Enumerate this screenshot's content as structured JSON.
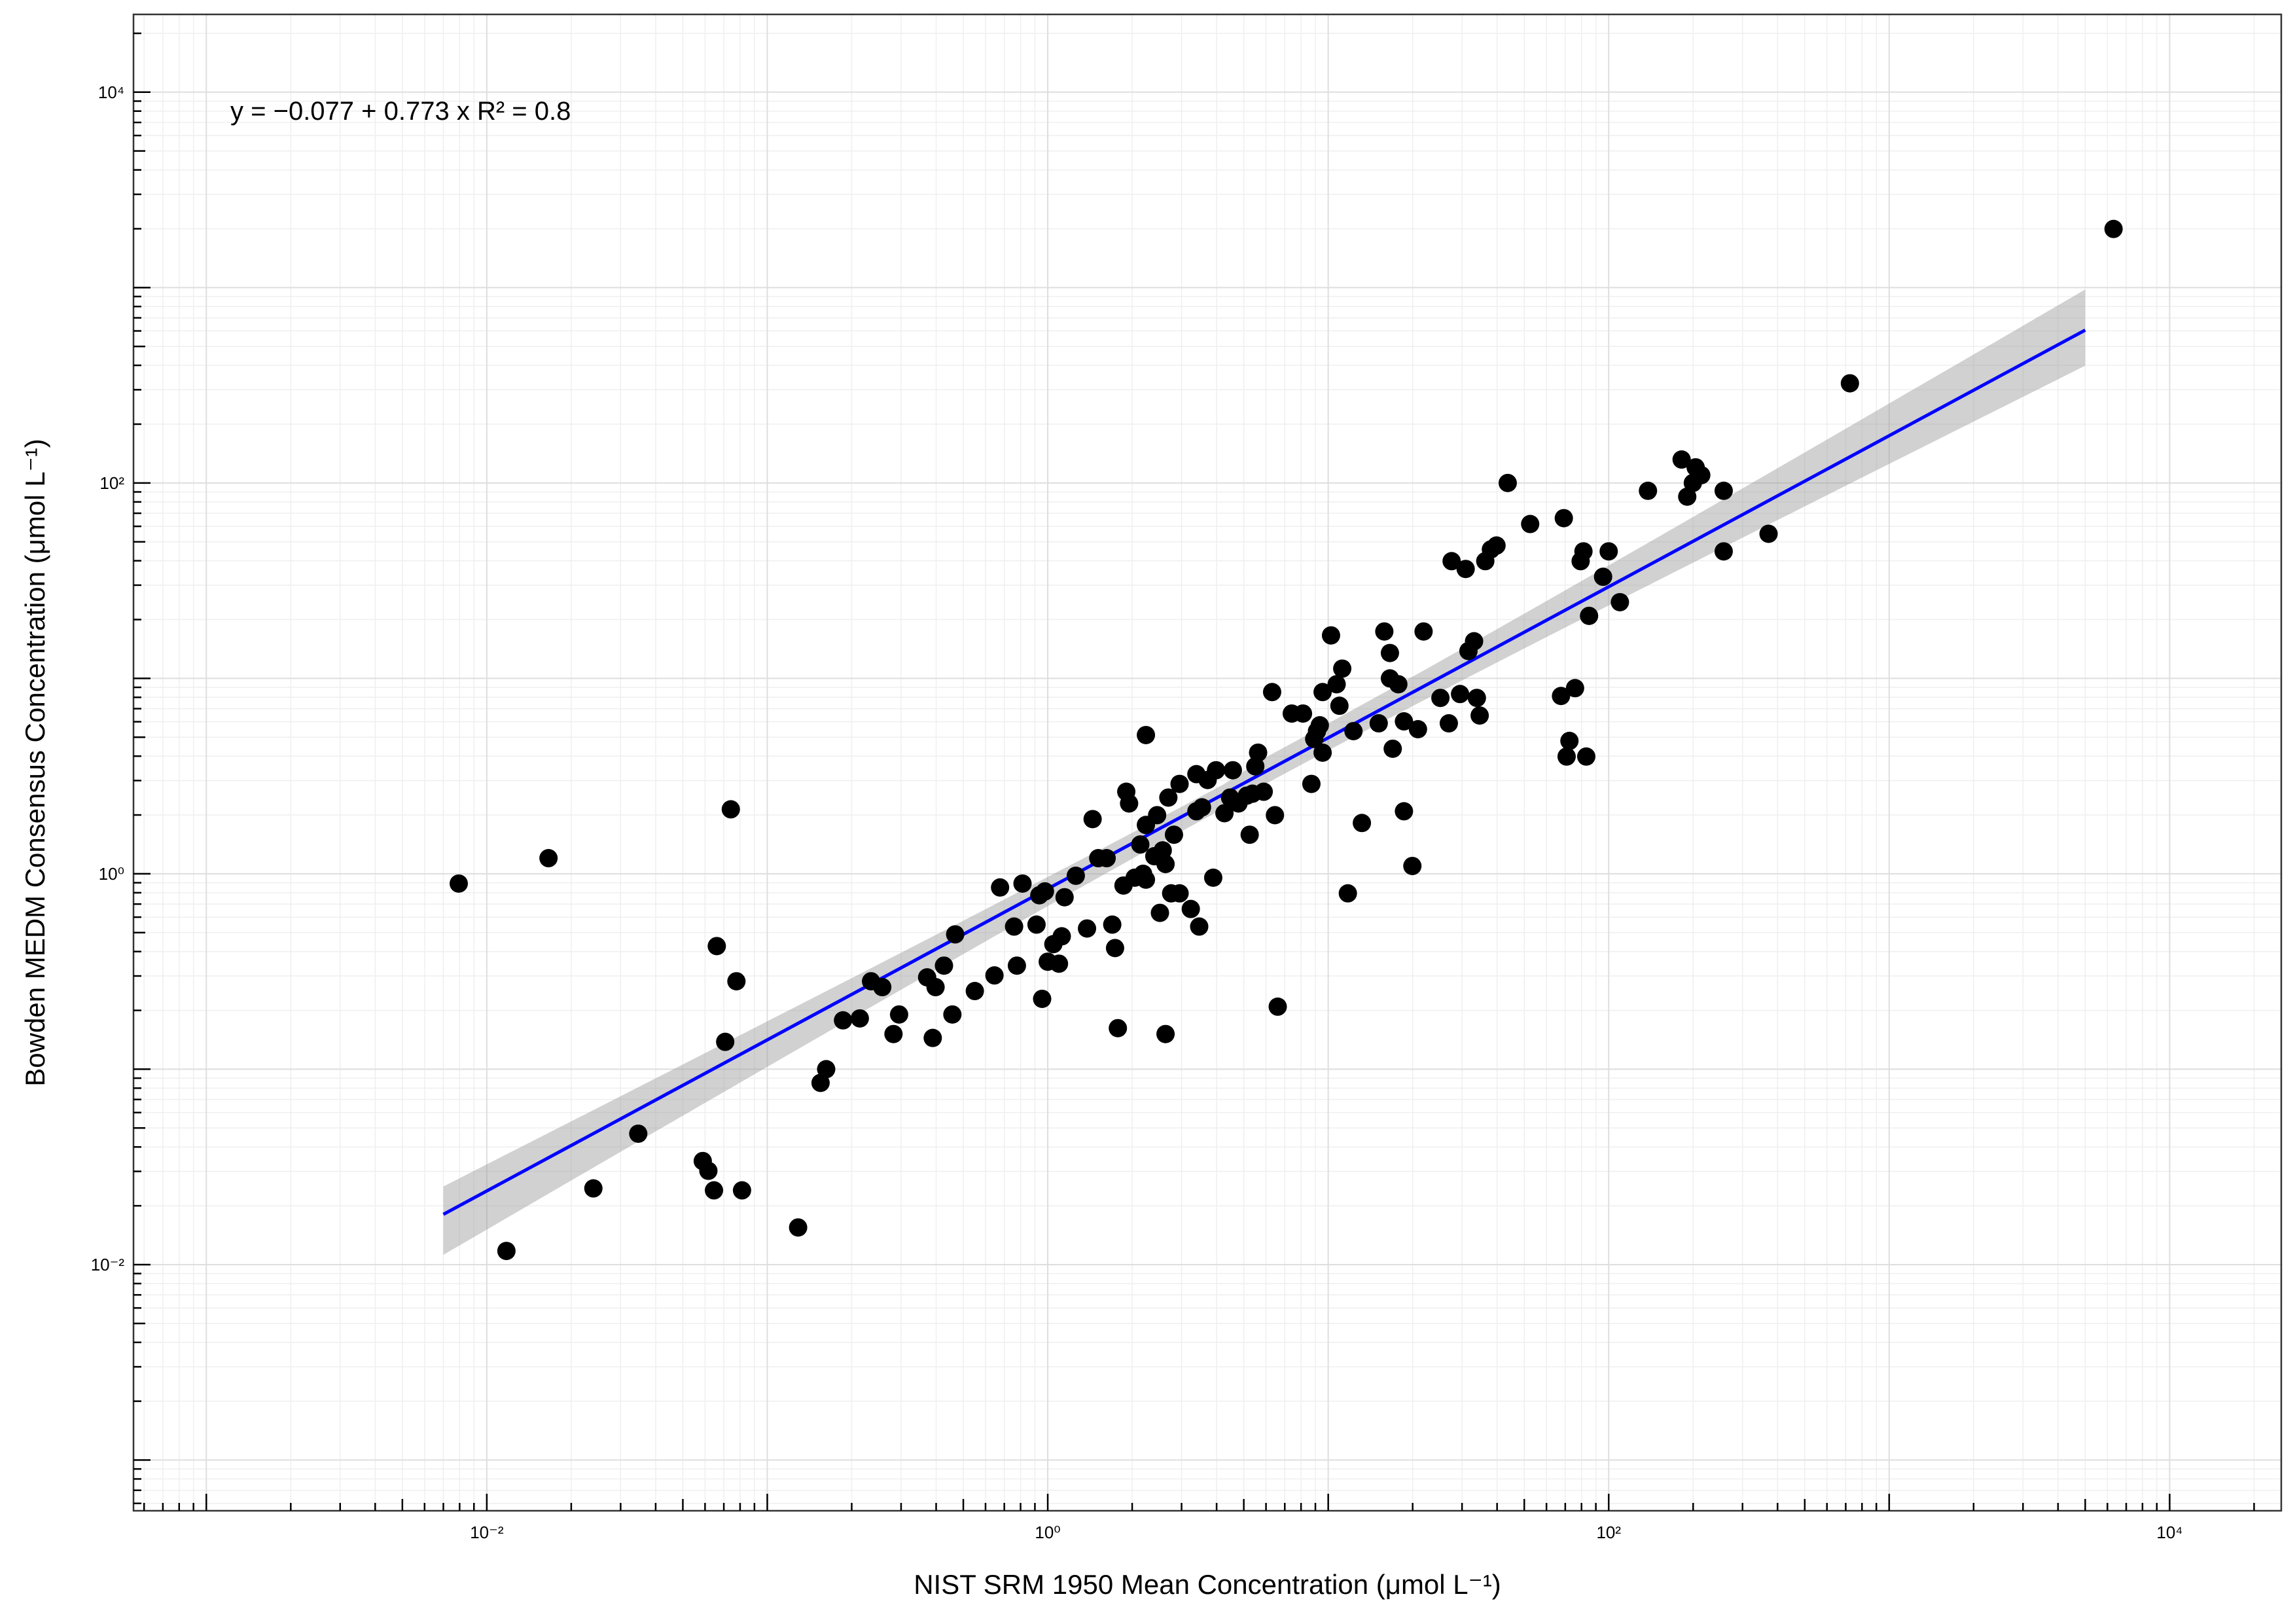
{
  "chart_data": {
    "type": "scatter",
    "x_scale": "log10",
    "y_scale": "log10",
    "xlabel": "NIST SRM 1950 Mean Concentration (μmol L⁻¹)",
    "ylabel": "Bowden MEDM Consensus Concentration (μmol L⁻¹)",
    "xlim": [
      0.00055,
      25000
    ],
    "ylim": [
      0.00055,
      25000
    ],
    "x_ticks": [
      {
        "value": 0.01,
        "label": "10⁻²"
      },
      {
        "value": 1,
        "label": "10⁰"
      },
      {
        "value": 100,
        "label": "10²"
      },
      {
        "value": 10000,
        "label": "10⁴"
      }
    ],
    "y_ticks": [
      {
        "value": 0.01,
        "label": "10⁻²"
      },
      {
        "value": 1,
        "label": "10⁰"
      },
      {
        "value": 100,
        "label": "10²"
      },
      {
        "value": 10000,
        "label": "10⁴"
      }
    ],
    "grid": true,
    "legend": "none",
    "annotation": "y = −0.077 + 0.773 x   R² = 0.8",
    "fit": {
      "intercept_log10": -0.077,
      "slope": 0.773,
      "x_range": [
        0.007,
        5000
      ],
      "color": "#0000ff",
      "ci_lower_log10_at_ends": [
        -1.95,
        2.6
      ],
      "ci_upper_log10_at_ends": [
        -1.6,
        2.99
      ]
    },
    "point_color": "#000000",
    "points": [
      [
        -2.1,
        -0.05
      ],
      [
        -1.78,
        0.08
      ],
      [
        -1.93,
        -1.93
      ],
      [
        -1.62,
        -1.61
      ],
      [
        -1.46,
        -1.33
      ],
      [
        -1.23,
        -1.47
      ],
      [
        -1.21,
        -1.52
      ],
      [
        -1.19,
        -1.62
      ],
      [
        -1.18,
        -0.37
      ],
      [
        -1.15,
        -0.86
      ],
      [
        -1.13,
        0.33
      ],
      [
        -1.11,
        -0.55
      ],
      [
        -1.09,
        -1.62
      ],
      [
        -0.89,
        -1.81
      ],
      [
        -0.81,
        -1.07
      ],
      [
        -0.79,
        -1.0
      ],
      [
        -0.73,
        -0.75
      ],
      [
        -0.67,
        -0.74
      ],
      [
        -0.63,
        -0.55
      ],
      [
        -0.59,
        -0.58
      ],
      [
        -0.55,
        -0.82
      ],
      [
        -0.53,
        -0.72
      ],
      [
        -0.43,
        -0.53
      ],
      [
        -0.41,
        -0.84
      ],
      [
        -0.4,
        -0.58
      ],
      [
        -0.37,
        -0.47
      ],
      [
        -0.34,
        -0.72
      ],
      [
        -0.33,
        -0.31
      ],
      [
        -0.26,
        -0.6
      ],
      [
        -0.19,
        -0.52
      ],
      [
        -0.17,
        -0.07
      ],
      [
        -0.12,
        -0.27
      ],
      [
        -0.11,
        -0.47
      ],
      [
        -0.09,
        -0.05
      ],
      [
        -0.04,
        -0.26
      ],
      [
        -0.03,
        -0.11
      ],
      [
        -0.02,
        -0.64
      ],
      [
        -0.01,
        -0.09
      ],
      [
        0.0,
        -0.45
      ],
      [
        0.02,
        -0.36
      ],
      [
        0.04,
        -0.46
      ],
      [
        0.05,
        -0.32
      ],
      [
        0.06,
        -0.12
      ],
      [
        0.1,
        -0.01
      ],
      [
        0.14,
        -0.28
      ],
      [
        0.16,
        0.28
      ],
      [
        0.18,
        0.08
      ],
      [
        0.21,
        0.08
      ],
      [
        0.23,
        -0.26
      ],
      [
        0.24,
        -0.38
      ],
      [
        0.25,
        -0.79
      ],
      [
        0.27,
        -0.06
      ],
      [
        0.28,
        0.42
      ],
      [
        0.29,
        0.36
      ],
      [
        0.31,
        -0.02
      ],
      [
        0.33,
        0.15
      ],
      [
        0.34,
        0.0
      ],
      [
        0.35,
        -0.03
      ],
      [
        0.35,
        0.25
      ],
      [
        0.35,
        0.71
      ],
      [
        0.38,
        0.09
      ],
      [
        0.39,
        0.3
      ],
      [
        0.4,
        -0.2
      ],
      [
        0.41,
        0.12
      ],
      [
        0.42,
        0.05
      ],
      [
        0.42,
        -0.82
      ],
      [
        0.43,
        0.39
      ],
      [
        0.44,
        -0.1
      ],
      [
        0.45,
        0.2
      ],
      [
        0.47,
        0.46
      ],
      [
        0.47,
        -0.1
      ],
      [
        0.51,
        -0.18
      ],
      [
        0.53,
        0.32
      ],
      [
        0.53,
        0.51
      ],
      [
        0.54,
        -0.27
      ],
      [
        0.55,
        0.34
      ],
      [
        0.57,
        0.48
      ],
      [
        0.59,
        -0.02
      ],
      [
        0.6,
        0.53
      ],
      [
        0.63,
        0.31
      ],
      [
        0.65,
        0.39
      ],
      [
        0.66,
        0.53
      ],
      [
        0.68,
        0.36
      ],
      [
        0.71,
        0.4
      ],
      [
        0.72,
        0.2
      ],
      [
        0.73,
        0.41
      ],
      [
        0.74,
        0.55
      ],
      [
        0.75,
        0.62
      ],
      [
        0.77,
        0.42
      ],
      [
        0.8,
        0.93
      ],
      [
        0.81,
        0.3
      ],
      [
        0.82,
        -0.68
      ],
      [
        0.87,
        0.82
      ],
      [
        0.91,
        0.82
      ],
      [
        0.94,
        0.46
      ],
      [
        0.95,
        0.69
      ],
      [
        0.96,
        0.73
      ],
      [
        0.97,
        0.76
      ],
      [
        0.98,
        0.93
      ],
      [
        0.98,
        0.62
      ],
      [
        1.01,
        1.22
      ],
      [
        1.03,
        0.97
      ],
      [
        1.04,
        0.86
      ],
      [
        1.05,
        1.05
      ],
      [
        1.07,
        -0.1
      ],
      [
        1.09,
        0.73
      ],
      [
        1.12,
        0.26
      ],
      [
        1.18,
        0.77
      ],
      [
        1.2,
        1.24
      ],
      [
        1.22,
        1.0
      ],
      [
        1.22,
        1.13
      ],
      [
        1.23,
        0.64
      ],
      [
        1.25,
        0.97
      ],
      [
        1.27,
        0.32
      ],
      [
        1.27,
        0.78
      ],
      [
        1.3,
        0.04
      ],
      [
        1.32,
        0.74
      ],
      [
        1.34,
        1.24
      ],
      [
        1.4,
        0.9
      ],
      [
        1.43,
        0.77
      ],
      [
        1.44,
        1.6
      ],
      [
        1.47,
        0.92
      ],
      [
        1.49,
        1.56
      ],
      [
        1.5,
        1.14
      ],
      [
        1.52,
        1.19
      ],
      [
        1.53,
        0.9
      ],
      [
        1.54,
        0.81
      ],
      [
        1.56,
        1.6
      ],
      [
        1.58,
        1.66
      ],
      [
        1.6,
        1.68
      ],
      [
        1.64,
        2.0
      ],
      [
        1.72,
        1.79
      ],
      [
        1.83,
        0.91
      ],
      [
        1.84,
        1.82
      ],
      [
        1.85,
        0.6
      ],
      [
        1.86,
        0.68
      ],
      [
        1.88,
        0.95
      ],
      [
        1.9,
        1.6
      ],
      [
        1.91,
        1.65
      ],
      [
        1.92,
        0.6
      ],
      [
        1.93,
        1.32
      ],
      [
        1.98,
        1.52
      ],
      [
        2.0,
        1.65
      ],
      [
        2.04,
        1.39
      ],
      [
        2.14,
        1.96
      ],
      [
        2.26,
        2.12
      ],
      [
        2.28,
        1.93
      ],
      [
        2.3,
        2.0
      ],
      [
        2.31,
        2.08
      ],
      [
        2.33,
        2.04
      ],
      [
        2.41,
        1.96
      ],
      [
        2.41,
        1.65
      ],
      [
        2.57,
        1.74
      ],
      [
        2.86,
        2.51
      ],
      [
        3.8,
        3.3
      ]
    ]
  }
}
